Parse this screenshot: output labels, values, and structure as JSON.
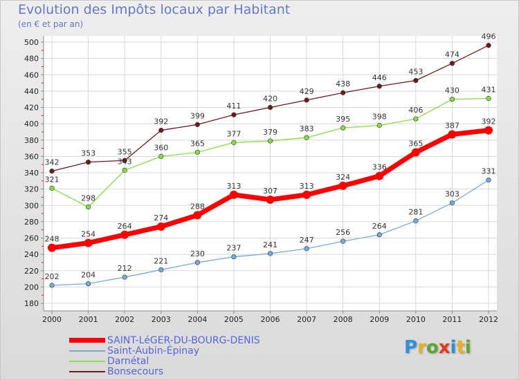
{
  "colors": {
    "series": [
      "#ff0000",
      "#77aadd",
      "#88dd44",
      "#6d1a1a"
    ],
    "axis": "#8a8a8a",
    "grid": "#d8d8d8",
    "minor_tick": "#ff0000",
    "title": "#6677cc",
    "legend_text": "#5566dd"
  },
  "logo": {
    "letters": [
      "P",
      "r",
      "o",
      "x",
      "i",
      "t",
      "i"
    ],
    "colors": [
      "#2d8fdd",
      "#e8b020",
      "#5aa830",
      "#e83818",
      "#2d8fdd",
      "#e8b020",
      "#5aa830"
    ]
  },
  "chart_data": {
    "type": "line",
    "title": "Evolution des Impôts locaux par Habitant",
    "subtitle": "(en € et par an)",
    "xlabel": "",
    "ylabel": "",
    "x": [
      2000,
      2001,
      2002,
      2003,
      2004,
      2005,
      2006,
      2007,
      2008,
      2009,
      2010,
      2011,
      2012
    ],
    "ylim": [
      180,
      500
    ],
    "yticks": [
      180,
      200,
      220,
      240,
      260,
      280,
      300,
      320,
      340,
      360,
      380,
      400,
      420,
      440,
      460,
      480,
      500
    ],
    "grid": true,
    "legend": "bottom-left",
    "series": [
      {
        "name": "SAINT-LéGER-DU-BOURG-DENIS",
        "values": [
          248,
          254,
          264,
          274,
          288,
          313,
          307,
          313,
          324,
          336,
          365,
          387,
          392
        ]
      },
      {
        "name": "Saint-Aubin-Épinay",
        "values": [
          202,
          204,
          212,
          221,
          230,
          237,
          241,
          247,
          256,
          264,
          281,
          303,
          331
        ]
      },
      {
        "name": "Darnétal",
        "values": [
          321,
          298,
          343,
          360,
          365,
          377,
          379,
          383,
          395,
          398,
          406,
          430,
          431
        ]
      },
      {
        "name": "Bonsecours",
        "values": [
          342,
          353,
          355,
          392,
          399,
          411,
          420,
          429,
          438,
          446,
          453,
          474,
          496
        ]
      }
    ]
  }
}
